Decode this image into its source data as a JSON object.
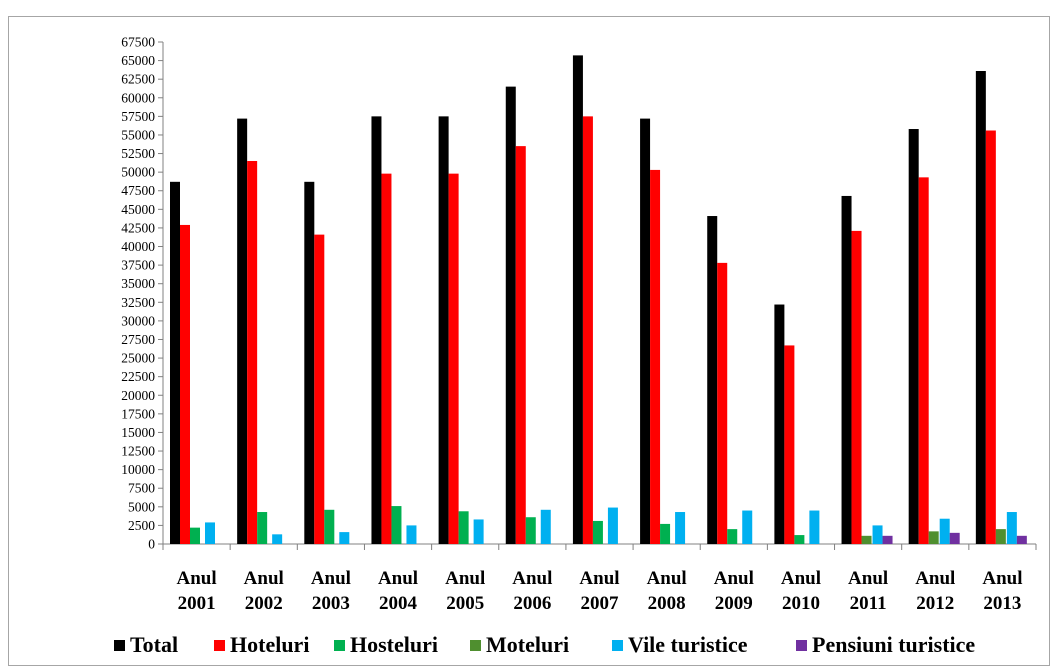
{
  "chart_data": {
    "type": "bar",
    "categories": [
      [
        "Anul",
        "2001"
      ],
      [
        "Anul",
        "2002"
      ],
      [
        "Anul",
        "2003"
      ],
      [
        "Anul",
        "2004"
      ],
      [
        "Anul",
        "2005"
      ],
      [
        "Anul",
        "2006"
      ],
      [
        "Anul",
        "2007"
      ],
      [
        "Anul",
        "2008"
      ],
      [
        "Anul",
        "2009"
      ],
      [
        "Anul",
        "2010"
      ],
      [
        "Anul",
        "2011"
      ],
      [
        "Anul",
        "2012"
      ],
      [
        "Anul",
        "2013"
      ]
    ],
    "series": [
      {
        "name": "Total",
        "color": "#000000",
        "values": [
          48700,
          57200,
          48700,
          57500,
          57500,
          61500,
          65700,
          57200,
          44100,
          32200,
          46800,
          55800,
          63600
        ]
      },
      {
        "name": "Hoteluri",
        "color": "#ff0000",
        "values": [
          42900,
          51500,
          41600,
          49800,
          49800,
          53500,
          57500,
          50300,
          37800,
          26700,
          42100,
          49300,
          55600
        ]
      },
      {
        "name": "Hosteluri",
        "color": "#00b050",
        "values": [
          2200,
          4300,
          4600,
          5100,
          4400,
          3600,
          3100,
          2700,
          2000,
          1200,
          0,
          0,
          0
        ]
      },
      {
        "name": "Moteluri",
        "color": "#4f8f2f",
        "values": [
          0,
          0,
          0,
          0,
          0,
          0,
          0,
          0,
          0,
          0,
          1100,
          1700,
          2000
        ]
      },
      {
        "name": "Vile turistice",
        "color": "#00b0f0",
        "values": [
          2900,
          1300,
          1600,
          2500,
          3300,
          4600,
          4900,
          4300,
          4500,
          4500,
          2500,
          3400,
          4300
        ]
      },
      {
        "name": "Pensiuni turistice",
        "color": "#7030a0",
        "values": [
          0,
          0,
          0,
          0,
          0,
          0,
          0,
          0,
          0,
          0,
          1100,
          1500,
          1100
        ]
      }
    ],
    "y_ticks": [
      "0",
      "2500",
      "5000",
      "7500",
      "10000",
      "12500",
      "15000",
      "17500",
      "20000",
      "22500",
      "25000",
      "27500",
      "30000",
      "32500",
      "35000",
      "37500",
      "40000",
      "42500",
      "45000",
      "47500",
      "50000",
      "52500",
      "55000",
      "57500",
      "60000",
      "62500",
      "65000",
      "67500"
    ],
    "ylim": [
      0,
      67500
    ],
    "title": "",
    "xlabel": "",
    "ylabel": "",
    "grid": false,
    "legend_position": "bottom"
  }
}
